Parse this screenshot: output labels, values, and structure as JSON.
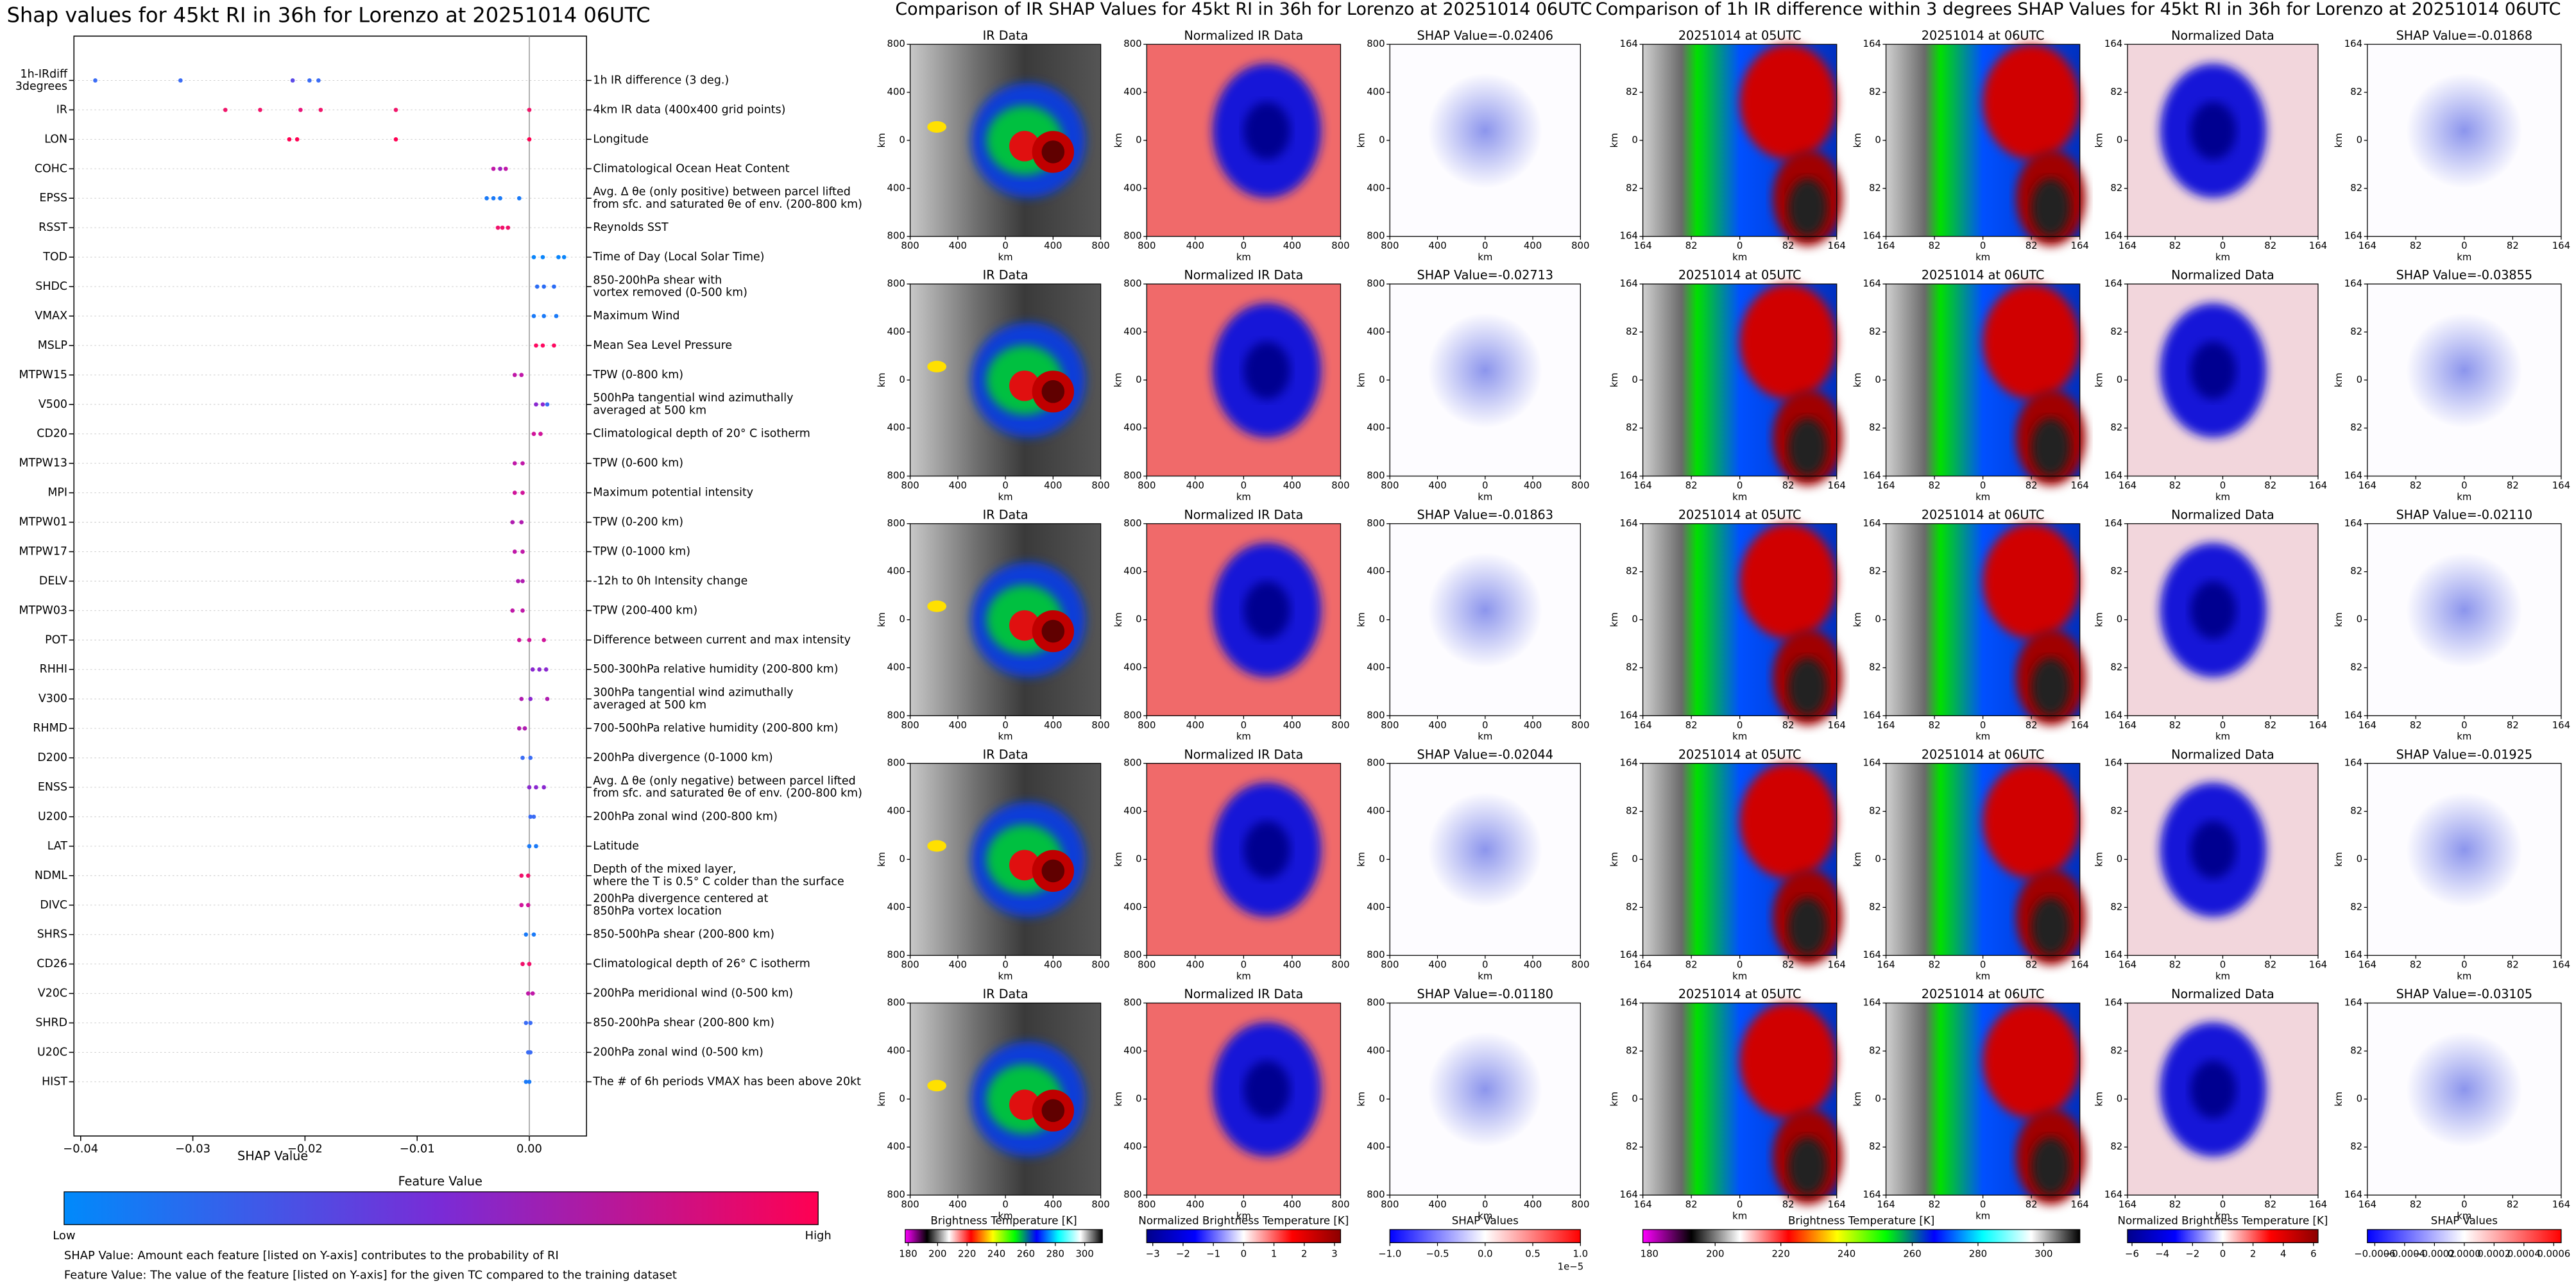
{
  "chart_data": [
    {
      "type": "scatter",
      "title": "Shap values for 45kt RI in 36h for Lorenzo at 20251014 06UTC",
      "xlabel": "SHAP Value",
      "xlim": [
        -0.0406,
        0.0051
      ],
      "xticks": [
        {
          "value": -0.04,
          "label": "−0.04"
        },
        {
          "value": -0.03,
          "label": "−0.03"
        },
        {
          "value": -0.02,
          "label": "−0.02"
        },
        {
          "value": -0.01,
          "label": "−0.01"
        },
        {
          "value": 0,
          "label": "0.00"
        }
      ],
      "rows": [
        {
          "label": [
            "1h-IRdiff",
            "3degrees"
          ],
          "description": [
            "1h IR difference (3 deg.)"
          ],
          "values": [
            -0.0387,
            -0.0311,
            -0.0211,
            -0.0196,
            -0.0188
          ],
          "colors": [
            "#3a6cf5",
            "#3a6cf5",
            "#5b4ae8",
            "#3a6cf5",
            "#3a6cf5"
          ]
        },
        {
          "label": [
            "IR"
          ],
          "description": [
            "4km IR data (400x400 grid points)"
          ],
          "values": [
            -0.0271,
            -0.024,
            -0.0204,
            -0.0186,
            -0.0119,
            0
          ],
          "colors": [
            "#f0156a",
            "#f0156a",
            "#e8157a",
            "#f0156a",
            "#f0156a",
            "#f0156a"
          ]
        },
        {
          "label": [
            "LON"
          ],
          "description": [
            "Longitude"
          ],
          "values": [
            -0.0214,
            -0.0207,
            -0.0119,
            0
          ],
          "colors": [
            "#ff0052",
            "#ff0052",
            "#ff0052",
            "#ff0052"
          ]
        },
        {
          "label": [
            "COHC"
          ],
          "description": [
            "Climatological Ocean Heat Content"
          ],
          "values": [
            -0.0032,
            -0.0026,
            -0.0021
          ],
          "colors": [
            "#c018a8",
            "#a020c0",
            "#c018a8"
          ]
        },
        {
          "label": [
            "EPSS"
          ],
          "description": [
            "Avg. Δ θe (only positive) between parcel lifted",
            "from sfc. and saturated θe of env. (200-800 km)"
          ],
          "values": [
            -0.0038,
            -0.0032,
            -0.0026,
            -0.0009
          ],
          "colors": [
            "#1a7af8",
            "#1a7af8",
            "#1a7af8",
            "#1a7af8"
          ]
        },
        {
          "label": [
            "RSST"
          ],
          "description": [
            "Reynolds SST"
          ],
          "values": [
            -0.0028,
            -0.0024,
            -0.0019
          ],
          "colors": [
            "#f0106a",
            "#f0106a",
            "#f0106a"
          ]
        },
        {
          "label": [
            "TOD"
          ],
          "description": [
            "Time of Day (Local Solar Time)"
          ],
          "values": [
            0.0004,
            0.0012,
            0.0026,
            0.0031
          ],
          "colors": [
            "#0a85fb",
            "#0a85fb",
            "#0a85fb",
            "#0a85fb"
          ]
        },
        {
          "label": [
            "SHDC"
          ],
          "description": [
            "850-200hPa shear with",
            "vortex removed (0-500 km)"
          ],
          "values": [
            0.0007,
            0.0013,
            0.0022
          ],
          "colors": [
            "#2a6cf5",
            "#2a6cf5",
            "#2a6cf5"
          ]
        },
        {
          "label": [
            "VMAX"
          ],
          "description": [
            "Maximum Wind"
          ],
          "values": [
            0.0004,
            0.0013,
            0.0024
          ],
          "colors": [
            "#1a7af8",
            "#1a7af8",
            "#1a7af8"
          ]
        },
        {
          "label": [
            "MSLP"
          ],
          "description": [
            "Mean Sea Level Pressure"
          ],
          "values": [
            0.0006,
            0.0012,
            0.0022
          ],
          "colors": [
            "#ff0860",
            "#ff0860",
            "#ff0860"
          ]
        },
        {
          "label": [
            "MTPW15"
          ],
          "description": [
            "TPW (0-800 km)"
          ],
          "values": [
            -0.0013,
            -0.0007
          ],
          "colors": [
            "#c018a8",
            "#c018a8"
          ]
        },
        {
          "label": [
            "V500"
          ],
          "description": [
            "500hPa tangential wind azimuthally",
            "averaged at 500 km"
          ],
          "values": [
            0.0006,
            0.0012,
            0.0016
          ],
          "colors": [
            "#8a28d0",
            "#8a28d0",
            "#3a6cf5"
          ]
        },
        {
          "label": [
            "CD20"
          ],
          "description": [
            "Climatological depth of 20° C isotherm"
          ],
          "values": [
            0.0004,
            0.001
          ],
          "colors": [
            "#d0149a",
            "#d0149a"
          ]
        },
        {
          "label": [
            "MTPW13"
          ],
          "description": [
            "TPW (0-600 km)"
          ],
          "values": [
            -0.0013,
            -0.0006
          ],
          "colors": [
            "#c018a8",
            "#c018a8"
          ]
        },
        {
          "label": [
            "MPI"
          ],
          "description": [
            "Maximum potential intensity"
          ],
          "values": [
            -0.0013,
            -0.0006
          ],
          "colors": [
            "#d0149a",
            "#d0149a"
          ]
        },
        {
          "label": [
            "MTPW01"
          ],
          "description": [
            "TPW (0-200 km)"
          ],
          "values": [
            -0.0015,
            -0.0007
          ],
          "colors": [
            "#b01cb0",
            "#b01cb0"
          ]
        },
        {
          "label": [
            "MTPW17"
          ],
          "description": [
            "TPW (0-1000 km)"
          ],
          "values": [
            -0.0013,
            -0.0006
          ],
          "colors": [
            "#c018a8",
            "#c018a8"
          ]
        },
        {
          "label": [
            "DELV"
          ],
          "description": [
            "-12h to 0h Intensity change"
          ],
          "values": [
            -0.001,
            -0.0006
          ],
          "colors": [
            "#b01cb0",
            "#b01cb0"
          ]
        },
        {
          "label": [
            "MTPW03"
          ],
          "description": [
            "TPW (200-400 km)"
          ],
          "values": [
            -0.0015,
            -0.0006
          ],
          "colors": [
            "#c018a8",
            "#c018a8"
          ]
        },
        {
          "label": [
            "POT"
          ],
          "description": [
            "Difference between current and max intensity"
          ],
          "values": [
            -0.0009,
            0,
            0.0013
          ],
          "colors": [
            "#d0149a",
            "#d0149a",
            "#d0149a"
          ]
        },
        {
          "label": [
            "RHHI"
          ],
          "description": [
            "500-300hPa relative humidity (200-800 km)"
          ],
          "values": [
            0.0003,
            0.0009,
            0.0015
          ],
          "colors": [
            "#8a28d0",
            "#8a28d0",
            "#8a28d0"
          ]
        },
        {
          "label": [
            "V300"
          ],
          "description": [
            "300hPa tangential wind azimuthally",
            "averaged at 500 km"
          ],
          "values": [
            -0.0007,
            0.0001,
            0.0016
          ],
          "colors": [
            "#b01cb0",
            "#8a28d0",
            "#b01cb0"
          ]
        },
        {
          "label": [
            "RHMD"
          ],
          "description": [
            "700-500hPa relative humidity (200-800 km)"
          ],
          "values": [
            -0.0009,
            -0.0004
          ],
          "colors": [
            "#b01cb0",
            "#b01cb0"
          ]
        },
        {
          "label": [
            "D200"
          ],
          "description": [
            "200hPa divergence (0-1000 km)"
          ],
          "values": [
            -0.0006,
            0.0001
          ],
          "colors": [
            "#3a6cf5",
            "#3a6cf5"
          ]
        },
        {
          "label": [
            "ENSS"
          ],
          "description": [
            "Avg. Δ θe (only negative) between parcel lifted",
            "from sfc. and saturated θe of env. (200-800 km)"
          ],
          "values": [
            0,
            0.0006,
            0.0013
          ],
          "colors": [
            "#8a28d0",
            "#8a28d0",
            "#8a28d0"
          ]
        },
        {
          "label": [
            "U200"
          ],
          "description": [
            "200hPa zonal wind (200-800 km)"
          ],
          "values": [
            0.0001,
            0.0004
          ],
          "colors": [
            "#3a6cf5",
            "#3a6cf5"
          ]
        },
        {
          "label": [
            "LAT"
          ],
          "description": [
            "Latitude"
          ],
          "values": [
            0,
            0.0006
          ],
          "colors": [
            "#1a7af8",
            "#1a7af8"
          ]
        },
        {
          "label": [
            "NDML"
          ],
          "description": [
            "Depth of the mixed layer,",
            "where the T is 0.5° C colder than the surface"
          ],
          "values": [
            -0.0007,
            -0.0001
          ],
          "colors": [
            "#f0106a",
            "#f0106a"
          ]
        },
        {
          "label": [
            "DIVC"
          ],
          "description": [
            "200hPa divergence centered at",
            "850hPa vortex location"
          ],
          "values": [
            -0.0007,
            -0.0001
          ],
          "colors": [
            "#d0149a",
            "#d0149a"
          ]
        },
        {
          "label": [
            "SHRS"
          ],
          "description": [
            "850-500hPa shear (200-800 km)"
          ],
          "values": [
            -0.0003,
            0.0004
          ],
          "colors": [
            "#1a7af8",
            "#1a7af8"
          ]
        },
        {
          "label": [
            "CD26"
          ],
          "description": [
            "Climatological depth of 26° C isotherm"
          ],
          "values": [
            -0.0006,
            0
          ],
          "colors": [
            "#f0106a",
            "#f0106a"
          ]
        },
        {
          "label": [
            "V20C"
          ],
          "description": [
            "200hPa meridional wind (0-500 km)"
          ],
          "values": [
            -0.0001,
            0.0003
          ],
          "colors": [
            "#c018a8",
            "#c018a8"
          ]
        },
        {
          "label": [
            "SHRD"
          ],
          "description": [
            "850-200hPa shear (200-800 km)"
          ],
          "values": [
            -0.0003,
            0.0001
          ],
          "colors": [
            "#3a6cf5",
            "#3a6cf5"
          ]
        },
        {
          "label": [
            "U20C"
          ],
          "description": [
            "200hPa zonal wind (0-500 km)"
          ],
          "values": [
            -0.0001,
            0.0001
          ],
          "colors": [
            "#3a6cf5",
            "#3a6cf5"
          ]
        },
        {
          "label": [
            "HIST"
          ],
          "description": [
            "The # of 6h periods VMAX has been above 20kt"
          ],
          "values": [
            -0.0003,
            0
          ],
          "colors": [
            "#1a7af8",
            "#1a7af8"
          ]
        }
      ],
      "colorbar": {
        "title": "Feature Value",
        "low": "Low",
        "high": "High",
        "colors": [
          "#008afb",
          "#7a2bd6",
          "#ff0052"
        ]
      },
      "notes": [
        "SHAP Value: Amount each feature [listed on Y-axis] contributes to the probability of RI",
        "Feature Value: The value of the feature [listed on Y-axis] for the given TC compared to the training dataset"
      ]
    },
    {
      "type": "image-grid",
      "title": "Comparison of IR SHAP Values for 45kt RI in 36h for Lorenzo at 20251014 06UTC",
      "columns": [
        "IR Data",
        "Normalized IR Data"
      ],
      "shap_titles": [
        "SHAP Value=-0.02406",
        "SHAP Value=-0.02713",
        "SHAP Value=-0.01863",
        "SHAP Value=-0.02044",
        "SHAP Value=-0.01180"
      ],
      "axis_label": "km",
      "xlim": [
        -800,
        800
      ],
      "ylim": [
        -800,
        800
      ],
      "xticks": [
        {
          "value": -800,
          "label": "800"
        },
        {
          "value": -400,
          "label": "400"
        },
        0,
        400,
        800
      ],
      "yticks": [
        {
          "value": -800,
          "label": "800"
        },
        {
          "value": -400,
          "label": "400"
        },
        0,
        400,
        800
      ],
      "colorbars": [
        {
          "label": "Brightness Temperature [K]",
          "lim": [
            178,
            312
          ],
          "ticks": [
            180,
            200,
            220,
            240,
            260,
            280,
            300
          ],
          "colors": [
            "#ff00ff",
            "#000000",
            "#ffffff",
            "#ff0000",
            "#ffff00",
            "#00ff00",
            "#0000ff",
            "#00ffff",
            "#ffffff",
            "#000000"
          ]
        },
        {
          "label": "Normalized Brightness Temperature [K]",
          "lim": [
            -3.2,
            3.2
          ],
          "ticks": [
            {
              "value": -3,
              "label": "−3"
            },
            {
              "value": -2,
              "label": "−2"
            },
            {
              "value": -1,
              "label": "−1"
            },
            0,
            1,
            2,
            3
          ],
          "colors": [
            "#00008b",
            "#0000ff",
            "#ffffff",
            "#ff0000",
            "#8b0000"
          ]
        },
        {
          "label": "SHAP Values",
          "lim": [
            -1,
            1
          ],
          "ticks": [
            {
              "value": -1,
              "label": "−1.0"
            },
            {
              "value": -0.5,
              "label": "−0.5"
            },
            {
              "value": 0,
              "label": "0.0"
            },
            0.5,
            {
              "value": 1,
              "label": "1.0"
            }
          ],
          "offset_text": "1e−5",
          "colors": [
            "#0000ff",
            "#ffffff",
            "#ff0000"
          ]
        }
      ]
    },
    {
      "type": "image-grid",
      "title": "Comparison of 1h IR difference within 3 degrees SHAP Values for 45kt RI in 36h for Lorenzo at 20251014 06UTC",
      "columns": [
        "20251014 at 05UTC",
        "20251014 at 06UTC",
        "Normalized Data"
      ],
      "shap_titles": [
        "SHAP Value=-0.01868",
        "SHAP Value=-0.03855",
        "SHAP Value=-0.02110",
        "SHAP Value=-0.01925",
        "SHAP Value=-0.03105"
      ],
      "axis_label": "km",
      "xlim": [
        -164,
        164
      ],
      "ylim": [
        -164,
        164
      ],
      "xticks": [
        {
          "value": -164,
          "label": "164"
        },
        {
          "value": -82,
          "label": "82"
        },
        0,
        82,
        164
      ],
      "yticks": [
        {
          "value": -164,
          "label": "164"
        },
        {
          "value": -82,
          "label": "82"
        },
        0,
        82,
        164
      ],
      "colorbars": [
        {
          "label": "Brightness Temperature [K]",
          "lim": [
            178,
            311
          ],
          "ticks": [
            180,
            200,
            220,
            240,
            260,
            280,
            300
          ],
          "colors": [
            "#ff00ff",
            "#000000",
            "#ffffff",
            "#ff0000",
            "#ffff00",
            "#00ff00",
            "#0000ff",
            "#00ffff",
            "#ffffff",
            "#000000"
          ]
        },
        {
          "label": "Normalized Brightness Temperature [K]",
          "lim": [
            -6.3,
            6.3
          ],
          "ticks": [
            {
              "value": -6,
              "label": "−6"
            },
            {
              "value": -4,
              "label": "−4"
            },
            {
              "value": -2,
              "label": "−2"
            },
            0,
            2,
            4,
            6
          ],
          "colors": [
            "#00008b",
            "#0000ff",
            "#ffffff",
            "#ff0000",
            "#8b0000"
          ]
        },
        {
          "label": "SHAP Values",
          "lim": [
            -0.00065,
            0.00065
          ],
          "ticks": [
            {
              "value": -0.0006,
              "label": "−0.0006"
            },
            {
              "value": -0.0004,
              "label": "−0.0004"
            },
            {
              "value": -0.0002,
              "label": "−0.0002"
            },
            {
              "value": 0,
              "label": "0.0000"
            },
            {
              "value": 0.0002,
              "label": "0.0002"
            },
            {
              "value": 0.0004,
              "label": "0.0004"
            },
            {
              "value": 0.0006,
              "label": "0.0006"
            }
          ],
          "colors": [
            "#0000ff",
            "#ffffff",
            "#ff0000"
          ]
        }
      ]
    }
  ]
}
